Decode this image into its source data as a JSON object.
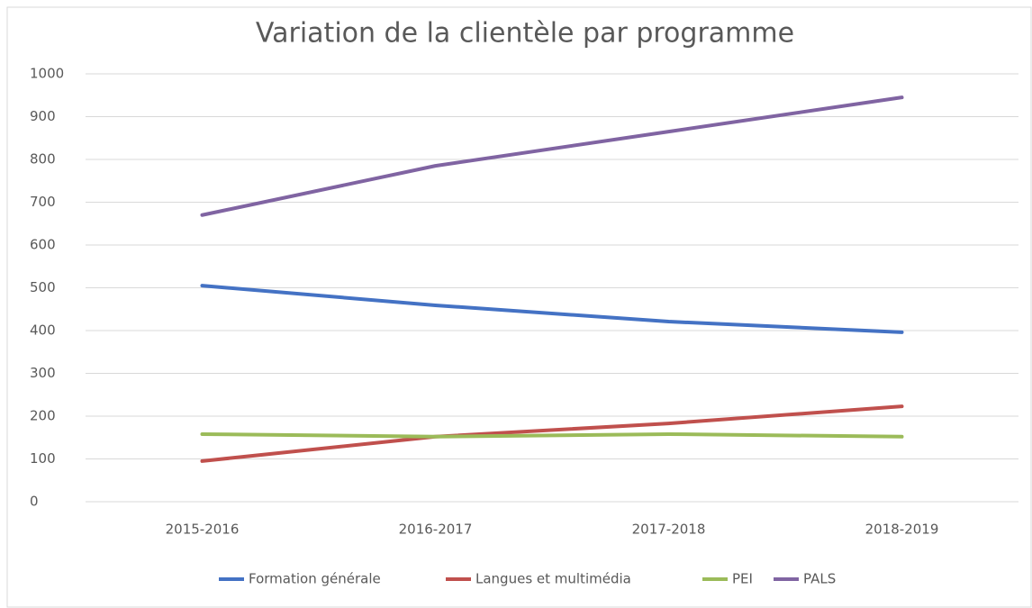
{
  "chart_data": {
    "type": "line",
    "title": "Variation de la clientèle par programme",
    "categories": [
      "2015-2016",
      "2016-2017",
      "2017-2018",
      "2018-2019"
    ],
    "series": [
      {
        "name": "Formation générale",
        "color": "#4472c4",
        "values": [
          505,
          459,
          421,
          396
        ]
      },
      {
        "name": "Langues et multimédia",
        "color": "#c0504d",
        "values": [
          95,
          152,
          183,
          223
        ]
      },
      {
        "name": "PEI",
        "color": "#9bbb59",
        "values": [
          158,
          152,
          158,
          152
        ]
      },
      {
        "name": "PALS",
        "color": "#8064a2",
        "values": [
          670,
          785,
          865,
          945
        ]
      }
    ],
    "ylim": [
      0,
      1000
    ],
    "yticks": [
      0,
      100,
      200,
      300,
      400,
      500,
      600,
      700,
      800,
      900,
      1000
    ],
    "grid": true,
    "legend": "bottom"
  }
}
